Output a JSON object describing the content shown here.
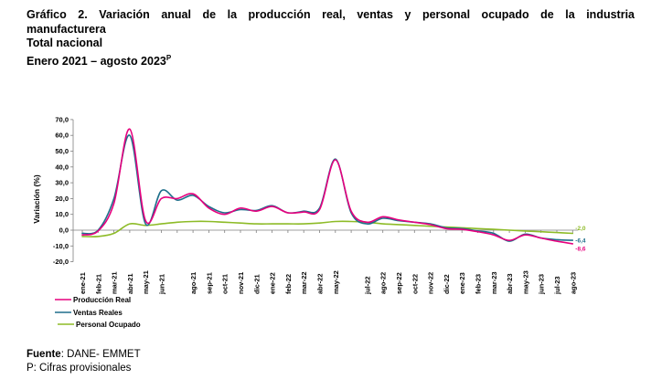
{
  "header": {
    "title_line1": "Gráfico 2. Variación anual de la producción real, ventas y personal ocupado de la industria",
    "title_line2": "manufacturera",
    "subtitle": "Total nacional",
    "period": "Enero 2021 – agosto 2023",
    "period_marker": "P"
  },
  "footer": {
    "source_label": "Fuente",
    "source_text": ": DANE- EMMET",
    "note": "P: Cifras provisionales"
  },
  "chart_data": {
    "type": "line",
    "ylabel": "Variación (%)",
    "ylim": [
      -20,
      70
    ],
    "yticks": [
      -20,
      -10,
      0,
      10,
      20,
      30,
      40,
      50,
      60,
      70
    ],
    "ytick_labels": [
      "-20,0",
      "-10,0",
      "0,0",
      "10,0",
      "20,0",
      "30,0",
      "40,0",
      "50,0",
      "60,0",
      "70,0"
    ],
    "x_labels": [
      "ene-21",
      "feb-21",
      "mar-21",
      "abr-21",
      "may-21",
      "jun-21",
      "jul-21",
      "ago-21",
      "sep-21",
      "oct-21",
      "nov-21",
      "dic-21",
      "ene-22",
      "feb-22",
      "mar-22",
      "abr-22",
      "may-22",
      "jun-22",
      "jul-22",
      "ago-22",
      "sep-22",
      "oct-22",
      "nov-22",
      "dic-22",
      "ene-23",
      "feb-23",
      "mar-23",
      "abr-23",
      "may-23",
      "jun-23",
      "jul-23",
      "ago-23"
    ],
    "x_label_shown": [
      true,
      true,
      true,
      true,
      true,
      true,
      false,
      true,
      true,
      true,
      true,
      true,
      true,
      true,
      true,
      true,
      true,
      false,
      true,
      true,
      true,
      true,
      true,
      true,
      true,
      true,
      true,
      true,
      true,
      true,
      true,
      true
    ],
    "x_label_text": [
      "ene-21",
      "feb-21",
      "mar-21",
      "abr-21",
      "may-21",
      "jun-21",
      "",
      "ago-21",
      "sep-21",
      "oct-21",
      "nov-21",
      "dic-21",
      "ene-22",
      "feb-22",
      "mar-22",
      "abr-22",
      "may-22",
      "",
      "jul-22",
      "ago-22",
      "sep-22",
      "oct-22",
      "nov-22",
      "dic-22",
      "ene-23",
      "feb-23",
      "mar-23",
      "abr-23",
      "may-23",
      "jun-23",
      "jul-23",
      "ago-23"
    ],
    "grid": false,
    "legend_position": "bottom-left",
    "series": [
      {
        "name": "Producción Real",
        "color": "#e6007e",
        "values": [
          -3.0,
          -0.5,
          17.0,
          64.0,
          6.0,
          20.0,
          20.0,
          23.0,
          14.0,
          10.0,
          14.0,
          12.0,
          15.0,
          11.0,
          11.5,
          13.0,
          44.5,
          12.0,
          5.0,
          8.5,
          6.5,
          5.0,
          3.5,
          1.0,
          0.5,
          -1.0,
          -3.0,
          -6.5,
          -3.0,
          -5.0,
          -7.0,
          -8.6
        ],
        "end_label": "-8,6"
      },
      {
        "name": "Ventas Reales",
        "color": "#1f6f8b",
        "values": [
          -2.0,
          0.0,
          20.0,
          60.0,
          4.0,
          25.0,
          19.0,
          22.0,
          15.0,
          11.0,
          13.0,
          12.5,
          15.5,
          11.0,
          12.0,
          14.0,
          45.0,
          11.0,
          4.0,
          7.5,
          6.0,
          5.0,
          4.0,
          1.5,
          1.0,
          -0.5,
          -2.0,
          -7.0,
          -2.5,
          -5.0,
          -6.0,
          -6.4
        ],
        "end_label": "-6,4"
      },
      {
        "name": "Personal Ocupado",
        "color": "#8dbb27",
        "values": [
          -4.0,
          -4.0,
          -2.0,
          4.0,
          3.0,
          4.0,
          5.0,
          5.5,
          5.5,
          5.0,
          4.5,
          4.0,
          4.0,
          4.0,
          4.0,
          4.5,
          5.5,
          5.5,
          5.0,
          4.0,
          3.5,
          3.0,
          2.5,
          2.0,
          1.5,
          1.0,
          0.5,
          0.0,
          -0.5,
          -1.0,
          -1.5,
          -2.0
        ],
        "end_label": "-2,0"
      }
    ]
  }
}
